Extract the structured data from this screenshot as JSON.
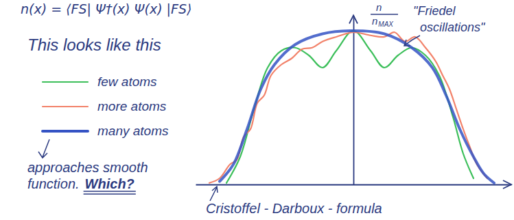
{
  "chart_data": {
    "type": "line",
    "formula": "n(x) = ⟨FS| Ψ†(x) Ψ(x) |FS⟩",
    "title": "This looks like this",
    "y_label": {
      "numerator": "n",
      "denominator": "n",
      "subscript": "MAX"
    },
    "annotation": [
      "\"Friedel",
      "oscillations\""
    ],
    "note": [
      "approaches smooth",
      "function.",
      "Which?"
    ],
    "footnote": "Cristoffel - Darboux - formula",
    "xlim": [
      -1.15,
      1.15
    ],
    "ylim": [
      0,
      1.1
    ],
    "xticks": [],
    "yticks": [],
    "tick_labels": false,
    "grid": false,
    "series": [
      {
        "name": "few atoms",
        "color": "#3cbf5a",
        "marker": "none",
        "line_style": "solid",
        "x": [
          -0.925,
          -0.825,
          -0.725,
          -0.625,
          -0.525,
          -0.425,
          -0.325,
          -0.225,
          -0.125,
          0,
          0.125,
          0.225,
          0.325,
          0.425,
          0.525,
          0.625,
          0.725,
          0.8,
          0.875
        ],
        "values": [
          0.01,
          0.18,
          0.49,
          0.76,
          0.87,
          0.89,
          0.84,
          0.76,
          0.87,
          1.0,
          0.87,
          0.76,
          0.84,
          0.89,
          0.84,
          0.71,
          0.44,
          0.2,
          0.04
        ]
      },
      {
        "name": "more atoms",
        "color": "#f2826a",
        "marker": "none",
        "line_style": "solid",
        "x": [
          -1.05,
          -0.975,
          -0.9,
          -0.85,
          -0.8,
          -0.75,
          -0.7,
          -0.65,
          -0.6,
          -0.525,
          -0.45,
          -0.375,
          -0.3,
          -0.225,
          -0.125,
          0,
          0.125,
          0.225,
          0.3,
          0.375,
          0.45,
          0.525,
          0.6,
          0.65,
          0.7,
          0.75,
          0.8,
          0.85,
          0.9,
          0.975
        ],
        "values": [
          0.01,
          0.04,
          0.13,
          0.16,
          0.31,
          0.36,
          0.53,
          0.58,
          0.71,
          0.78,
          0.82,
          0.88,
          0.89,
          0.93,
          0.96,
          0.99,
          0.97,
          0.96,
          0.99,
          0.93,
          0.96,
          0.89,
          0.8,
          0.71,
          0.62,
          0.49,
          0.36,
          0.24,
          0.13,
          0.04
        ]
      },
      {
        "name": "many atoms",
        "color": "#3553c4",
        "marker": "none",
        "line_style": "solid",
        "x": [
          -0.975,
          -0.875,
          -0.775,
          -0.675,
          -0.575,
          -0.425,
          -0.225,
          0,
          0.225,
          0.425,
          0.575,
          0.675,
          0.775,
          0.875,
          0.95,
          1.025
        ],
        "values": [
          0.02,
          0.13,
          0.36,
          0.62,
          0.78,
          0.91,
          0.98,
          1.0,
          0.98,
          0.89,
          0.76,
          0.58,
          0.36,
          0.18,
          0.07,
          0.01
        ]
      }
    ]
  }
}
